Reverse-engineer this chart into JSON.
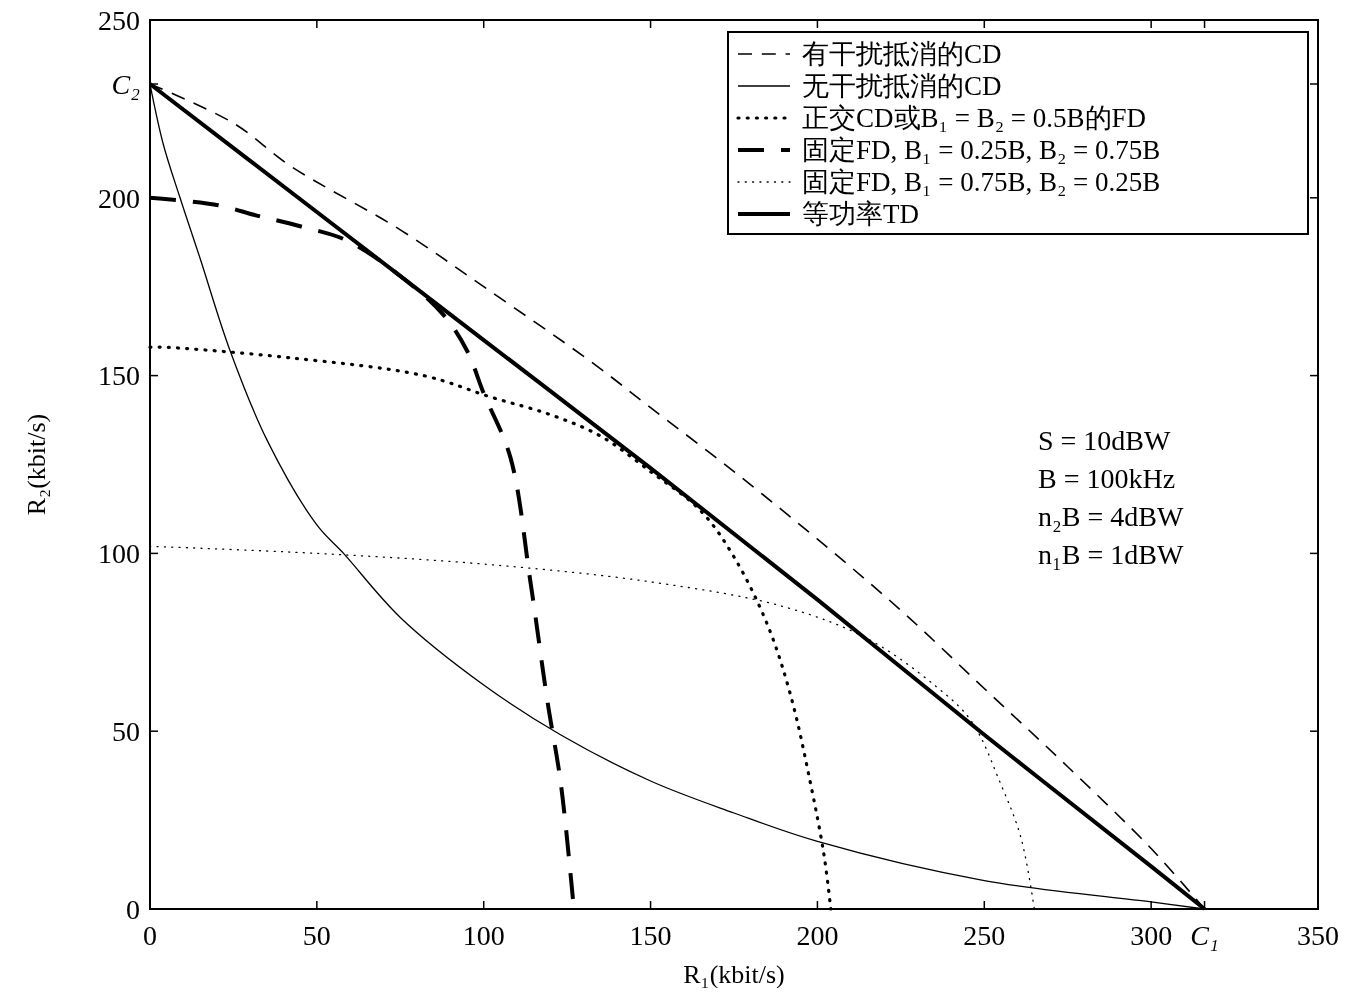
{
  "chart_data": {
    "type": "line",
    "xlabel": "R₁(kbit/s)",
    "ylabel": "R₂(kbit/s)",
    "xlim": [
      0,
      350
    ],
    "xticks": [
      0,
      50,
      100,
      150,
      200,
      250,
      300,
      {
        "value": 316,
        "label": "C₁"
      },
      350
    ],
    "ylim": [
      0,
      250
    ],
    "yticks": [
      0,
      50,
      100,
      150,
      200,
      {
        "value": 232,
        "label": "C₂"
      },
      250
    ],
    "grid": false,
    "legend": "top right",
    "annotations": [
      "S = 10dBW",
      "B = 100kHz",
      "n₂B = 4dBW",
      "n₁B = 1dBW"
    ],
    "series": [
      {
        "name": "有干扰抵消的CD",
        "color": "#000000",
        "line_style": "dashed",
        "x": [
          0,
          25,
          42,
          75,
          100,
          132,
          150,
          175,
          200,
          225,
          250,
          275,
          300,
          316
        ],
        "values": [
          232,
          221,
          209,
          191,
          175,
          154,
          141,
          123,
          104,
          84,
          62,
          40,
          17,
          0
        ]
      },
      {
        "name": "无干扰抵消的CD",
        "color": "#000000",
        "line_style": "solid",
        "x": [
          0,
          4,
          9,
          15,
          24,
          35,
          50,
          58,
          75,
          100,
          123,
          150,
          175,
          200,
          250,
          300,
          316
        ],
        "values": [
          232,
          215,
          200,
          183,
          157,
          132,
          108,
          100,
          82,
          63,
          49,
          36,
          27,
          19,
          8,
          2,
          0
        ]
      },
      {
        "name": "正交CD或B₁ = B₂ = 0.5B的FD",
        "color": "#000000",
        "line_style": "dotted",
        "x": [
          0,
          4,
          42,
          82,
          102,
          120,
          135,
          150,
          165,
          175,
          185,
          192,
          198,
          202,
          204
        ],
        "values": [
          158,
          158,
          155,
          150,
          144,
          139,
          133,
          123,
          112,
          99,
          80,
          60,
          35,
          15,
          0
        ]
      },
      {
        "name": "固定FD, B₁ = 0.25B, B₂ = 0.75B",
        "color": "#000000",
        "line_style": "dashed",
        "x": [
          0,
          20,
          32,
          45,
          59,
          75,
          88,
          95,
          100,
          108,
          114,
          119,
          123,
          126,
          127
        ],
        "values": [
          200,
          198,
          195,
          192,
          188,
          178,
          167,
          157,
          145,
          127,
          92,
          59,
          36,
          10,
          0
        ]
      },
      {
        "name": "固定FD, B₁ = 0.75B, B₂ = 0.25B",
        "color": "#000000",
        "line_style": "dotted",
        "x": [
          0,
          50,
          100,
          150,
          190,
          215,
          235,
          246,
          255,
          261,
          265
        ],
        "values": [
          102,
          100,
          97,
          92,
          85,
          76,
          63,
          53,
          35,
          20,
          0
        ]
      },
      {
        "name": "等功率TD",
        "color": "#000000",
        "line_style": "solid",
        "x": [
          0,
          50,
          100,
          150,
          200,
          250,
          300,
          316
        ],
        "values": [
          232,
          196,
          160,
          124,
          87,
          49,
          12,
          0
        ]
      }
    ]
  }
}
